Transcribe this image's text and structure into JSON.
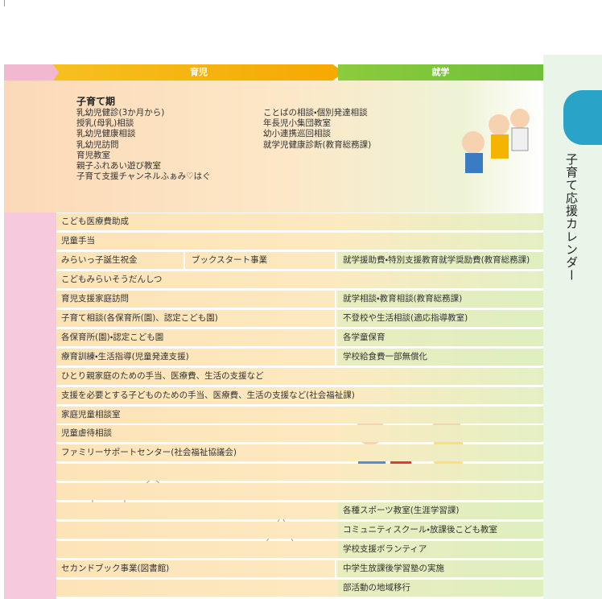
{
  "header": {
    "ikuji": "育児",
    "shugaku": "就学"
  },
  "period": {
    "title": "子育て期",
    "ikuji_items": [
      "乳幼児健診(3か月から)",
      "授乳(母乳)相談",
      "乳幼児健康相談",
      "乳幼児訪問",
      "育児教室",
      "親子ふれあい遊び教室",
      "子育て支援チャンネルふぁみ♡はぐ"
    ],
    "shugaku_items": [
      "ことばの相談・個別発達相談",
      "年長児小集団教室",
      "幼小連携巡回相談",
      "就学児健康診断(教育総務課)"
    ]
  },
  "side_tab": "子育て応援カレンダー",
  "rows": [
    {
      "all": "こども医療費助成"
    },
    {
      "all": "児童手当"
    },
    {
      "ikuji": [
        "みらいっ子誕生祝金",
        "ブックスタート事業"
      ],
      "shugaku": "就学援助費・特別支援教育就学奨励費(教育総務課)"
    },
    {
      "all": "こどもみらいそうだんしつ"
    },
    {
      "ikuji": [
        "育児支援家庭訪問"
      ],
      "shugaku": "就学相談・教育相談(教育総務課)"
    },
    {
      "ikuji": [
        "子育て相談(各保育所(園)、認定こども園)"
      ],
      "shugaku": "不登校や生活相談(適応指導教室)"
    },
    {
      "ikuji": [
        "各保育所(園)・認定こども園"
      ],
      "shugaku": "各学童保育"
    },
    {
      "ikuji": [
        "療育訓練・生活指導(児童発達支援)"
      ],
      "shugaku": "学校給食費一部無償化"
    },
    {
      "all": "ひとり親家庭のための手当、医療費、生活の支援など"
    },
    {
      "all": "支援を必要とする子どものための手当、医療費、生活の支援など(社会福祉課)"
    },
    {
      "all": "家庭児童相談室"
    },
    {
      "all": "児童虐待相談"
    },
    {
      "all": "ファミリーサポートセンター(社会福祉協議会)"
    },
    {},
    {},
    {
      "shugaku": "各種スポーツ教室(生涯学習課)"
    },
    {
      "shugaku": "コミュニティスクール・放課後こども教室"
    },
    {
      "shugaku": "学校支援ボランティア"
    },
    {
      "ikuji": [
        "セカンドブック事業(図書館)"
      ],
      "shugaku": "中学生放課後学習塾の実施"
    },
    {
      "shugaku": "部活動の地域移行"
    }
  ]
}
